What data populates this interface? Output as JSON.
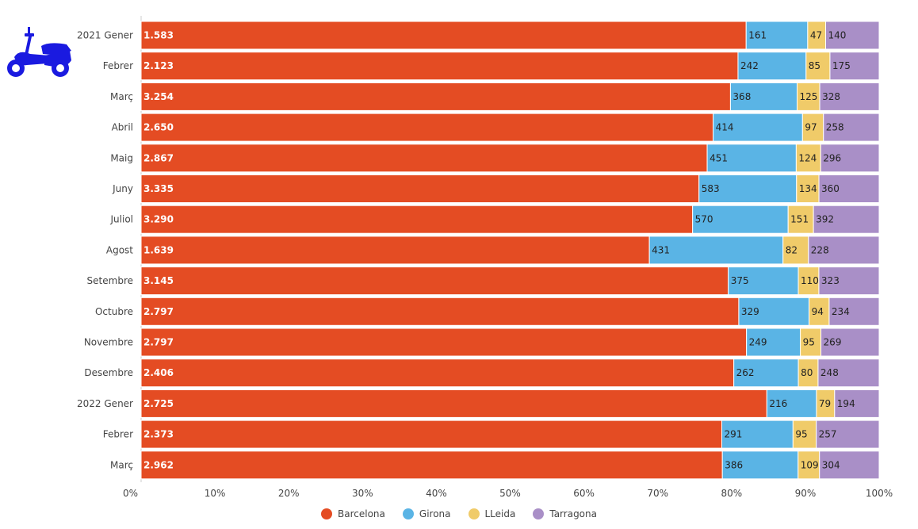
{
  "colors": {
    "barcelona": "#e44c23",
    "girona": "#5ab4e5",
    "lleida": "#f0cb69",
    "tarragona": "#a98fc7"
  },
  "icon": "scooter-icon",
  "chart_data": {
    "type": "bar",
    "orientation": "horizontal",
    "stacked": "percent",
    "categories": [
      "2021 Gener",
      "Febrer",
      "Març",
      "Abril",
      "Maig",
      "Juny",
      "Juliol",
      "Agost",
      "Setembre",
      "Octubre",
      "Novembre",
      "Desembre",
      "2022 Gener",
      "Febrer",
      "Març"
    ],
    "series": [
      {
        "name": "Barcelona",
        "key": "barcelona",
        "values": [
          1583,
          2123,
          3254,
          2650,
          2867,
          3335,
          3290,
          1639,
          3145,
          2797,
          2797,
          2406,
          2725,
          2373,
          2962
        ],
        "labels": [
          "1.583",
          "2.123",
          "3.254",
          "2.650",
          "2.867",
          "3.335",
          "3.290",
          "1.639",
          "3.145",
          "2.797",
          "2.797",
          "2.406",
          "2.725",
          "2.373",
          "2.962"
        ]
      },
      {
        "name": "Girona",
        "key": "girona",
        "values": [
          161,
          242,
          368,
          414,
          451,
          583,
          570,
          431,
          375,
          329,
          249,
          262,
          216,
          291,
          386
        ],
        "labels": [
          "161",
          "242",
          "368",
          "414",
          "451",
          "583",
          "570",
          "431",
          "375",
          "329",
          "249",
          "262",
          "216",
          "291",
          "386"
        ]
      },
      {
        "name": "LLeida",
        "key": "lleida",
        "values": [
          47,
          85,
          125,
          97,
          124,
          134,
          151,
          82,
          110,
          94,
          95,
          80,
          79,
          95,
          109
        ],
        "labels": [
          "47",
          "85",
          "125",
          "97",
          "124",
          "134",
          "151",
          "82",
          "110",
          "94",
          "95",
          "80",
          "79",
          "95",
          "109"
        ]
      },
      {
        "name": "Tarragona",
        "key": "tarragona",
        "values": [
          140,
          175,
          328,
          258,
          296,
          360,
          392,
          228,
          323,
          234,
          269,
          248,
          194,
          257,
          304
        ],
        "labels": [
          "140",
          "175",
          "328",
          "258",
          "296",
          "360",
          "392",
          "228",
          "323",
          "234",
          "269",
          "248",
          "194",
          "257",
          "304"
        ]
      }
    ],
    "xticks": [
      "0%",
      "10%",
      "20%",
      "30%",
      "40%",
      "50%",
      "60%",
      "70%",
      "80%",
      "90%",
      "100%"
    ],
    "xlim": [
      0,
      100
    ],
    "legend_position": "bottom-center",
    "grid": false
  }
}
